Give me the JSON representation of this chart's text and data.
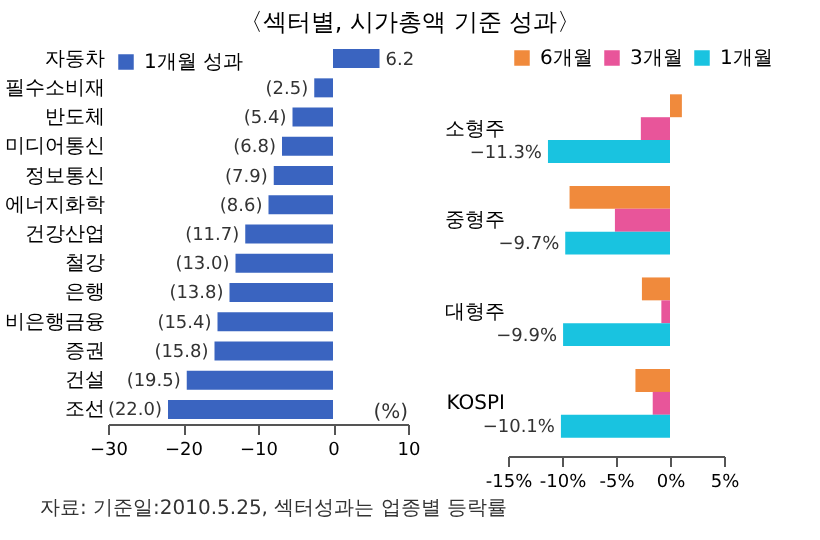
{
  "chart_data": [
    {
      "type": "bar",
      "orientation": "horizontal",
      "title": "〈섹터별, 시가총액 기준 성과〉",
      "annotations": [
        "(%)"
      ],
      "categories": [
        "자동차",
        "필수소비재",
        "반도체",
        "미디어통신",
        "정보통신",
        "에너지화학",
        "건강산업",
        "철강",
        "은행",
        "비은행금융",
        "증권",
        "건설",
        "조선"
      ],
      "series": [
        {
          "name": "1개월 성과",
          "color": "#3a64c0",
          "values": [
            6.2,
            -2.5,
            -5.4,
            -6.8,
            -7.9,
            -8.6,
            -11.7,
            -13.0,
            -13.8,
            -15.4,
            -15.8,
            -19.5,
            -22.0
          ],
          "value_labels": [
            "6.2",
            "(2.5)",
            "(5.4)",
            "(6.8)",
            "(7.9)",
            "(8.6)",
            "(11.7)",
            "(13.0)",
            "(13.8)",
            "(15.4)",
            "(15.8)",
            "(19.5)",
            "(22.0)"
          ]
        }
      ],
      "xlim": [
        -30,
        10
      ],
      "xticks": [
        -30,
        -20,
        -10,
        0,
        10
      ],
      "grid": false,
      "legend": "top left"
    },
    {
      "type": "bar",
      "orientation": "horizontal",
      "annotations": [
        "자료: 기준일:2010.5.25, 섹터성과는 업종별 등락률"
      ],
      "categories": [
        "소형주",
        "중형주",
        "대형주",
        "KOSPI"
      ],
      "series": [
        {
          "name": "6개월",
          "color": "#f08a3c",
          "values": [
            1.1,
            -9.3,
            -2.6,
            -3.2
          ]
        },
        {
          "name": "3개월",
          "color": "#e8559a",
          "values": [
            -2.7,
            -5.1,
            -0.8,
            -1.6
          ]
        },
        {
          "name": "1개월",
          "color": "#19c3e0",
          "values": [
            -11.3,
            -9.7,
            -9.9,
            -10.1
          ],
          "value_labels": [
            "−11.3%",
            "−9.7%",
            "−9.9%",
            "−10.1%"
          ]
        }
      ],
      "xlim": [
        -15,
        5
      ],
      "xticks": [
        {
          "value": -15,
          "label": "-15%"
        },
        {
          "value": -10,
          "label": "-10%"
        },
        {
          "value": -5,
          "label": "-5%"
        },
        {
          "value": 0,
          "label": "0%"
        },
        {
          "value": 5,
          "label": "5%"
        }
      ],
      "grid": false,
      "legend": "top"
    }
  ]
}
